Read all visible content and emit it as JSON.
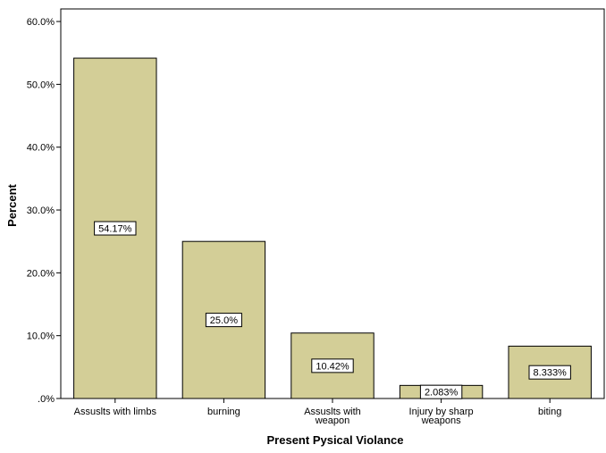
{
  "chart_data": {
    "type": "bar",
    "title": "",
    "xlabel": "Present Pysical Violance",
    "ylabel": "Percent",
    "ylim": [
      0,
      62
    ],
    "yticks": [
      0,
      10,
      20,
      30,
      40,
      50,
      60
    ],
    "ytick_labels": [
      ".0%",
      "10.0%",
      "20.0%",
      "30.0%",
      "40.0%",
      "50.0%",
      "60.0%"
    ],
    "categories": [
      [
        "Assuslts with limbs"
      ],
      [
        "burning"
      ],
      [
        "Assuslts with",
        "weapon"
      ],
      [
        "Injury by sharp",
        "weapons"
      ],
      [
        "biting"
      ]
    ],
    "values": [
      54.17,
      25.0,
      10.42,
      2.083,
      8.333
    ],
    "data_labels": [
      "54.17%",
      "25.0%",
      "10.42%",
      "2.083%",
      "8.333%"
    ],
    "grid": false,
    "legend": "none",
    "colors": {
      "bar_fill": "#d3ce97",
      "bar_stroke": "#000000",
      "axis": "#000000",
      "label_box_fill": "#ffffff"
    }
  }
}
